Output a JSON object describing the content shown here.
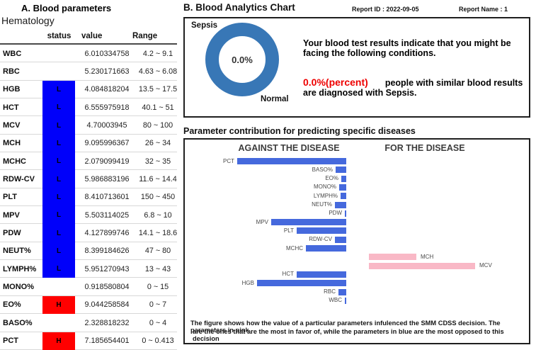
{
  "colors": {
    "status_low": "#0000fa",
    "status_high": "#ff0000",
    "donut_blue": "#3877b6",
    "bar_against": "#4569dd",
    "bar_for": "#f9b8c6",
    "highlight_red": "#ee0000"
  },
  "left_panel": {
    "title": "A. Blood parameters",
    "subtitle": "Hematology",
    "columns": {
      "status": "status",
      "value": "value",
      "range": "Range"
    },
    "rows": [
      {
        "name": "WBC",
        "status": "",
        "value": "6.010334758",
        "range": "4.2 ~ 9.1"
      },
      {
        "name": "RBC",
        "status": "",
        "value": "5.230171663",
        "range": "4.63 ~ 6.08"
      },
      {
        "name": "HGB",
        "status": "L",
        "value": "4.084818204",
        "range": "13.5 ~ 17.5"
      },
      {
        "name": "HCT",
        "status": "L",
        "value": "6.555975918",
        "range": "40.1 ~ 51"
      },
      {
        "name": "MCV",
        "status": "L",
        "value": "4.70003945",
        "range": "80 ~ 100"
      },
      {
        "name": "MCH",
        "status": "L",
        "value": "9.095996367",
        "range": "26 ~ 34"
      },
      {
        "name": "MCHC",
        "status": "L",
        "value": "2.079099419",
        "range": "32 ~ 35"
      },
      {
        "name": "RDW-CV",
        "status": "L",
        "value": "5.986883196",
        "range": "11.6 ~ 14.4"
      },
      {
        "name": "PLT",
        "status": "L",
        "value": "8.410713601",
        "range": "150 ~ 450"
      },
      {
        "name": "MPV",
        "status": "L",
        "value": "5.503114025",
        "range": "6.8 ~ 10"
      },
      {
        "name": "PDW",
        "status": "L",
        "value": "4.127899746",
        "range": "14.1 ~ 18.6"
      },
      {
        "name": "NEUT%",
        "status": "L",
        "value": "8.399184626",
        "range": "47 ~ 80"
      },
      {
        "name": "LYMPH%",
        "status": "L",
        "value": "5.951270943",
        "range": "13 ~ 43"
      },
      {
        "name": "MONO%",
        "status": "",
        "value": "0.918580804",
        "range": "0 ~ 15"
      },
      {
        "name": "EO%",
        "status": "H",
        "value": "9.044258584",
        "range": "0 ~ 7"
      },
      {
        "name": "BASO%",
        "status": "",
        "value": "2.328818232",
        "range": "0 ~ 4"
      },
      {
        "name": "PCT",
        "status": "H",
        "value": "7.185654401",
        "range": "0 ~ 0.413"
      }
    ]
  },
  "right_panel": {
    "title": "B. Blood Analytics Chart",
    "report_id_label": "Report ID :",
    "report_id_value": "2022-09-05",
    "report_name_label": "Report Name :",
    "report_name_value": "1",
    "message_intro": "Your blood test results indicate that you might be facing the following conditions.",
    "highlight": "0.0%(percent)",
    "message_rest": "people with similar blood results are diagnosed with Sepsis."
  },
  "contribution": {
    "title": "Parameter contribution for predicting specific diseases",
    "footnote_line1": "The figure shows how the value of a particular parameters infulenced the SMM CDSS decision. The parameters in pink",
    "footnote_line2": "are the ones that are the most in favor of, while the parameters in blue are the most opposed to this decision"
  },
  "chart_data": [
    {
      "type": "pie",
      "variant": "donut",
      "title": "B. Blood Analytics Chart",
      "labels": [
        "Sepsis",
        "Normal"
      ],
      "values": [
        0.0,
        100.0
      ],
      "unit": "percent",
      "center_label": "0.0%",
      "label_sepsis": "Sepsis",
      "label_normal": "Normal",
      "colors": [
        "#3877b6",
        "#3877b6"
      ],
      "legend_position": "labels-on-chart"
    },
    {
      "type": "bar",
      "orientation": "horizontal",
      "title": "Parameter contribution for predicting specific diseases",
      "groups": [
        "AGAINST THE DISEASE",
        "FOR THE DISEASE"
      ],
      "axis_note": "no numeric axis shown; values are relative magnitudes normalized to longest bar = 1.0",
      "against_color": "#4569dd",
      "for_color": "#f9b8c6",
      "bars": [
        {
          "name": "PCT",
          "direction": "against",
          "value": 1.0
        },
        {
          "name": "BASO%",
          "direction": "against",
          "value": 0.1
        },
        {
          "name": "EO%",
          "direction": "against",
          "value": 0.045
        },
        {
          "name": "MONO%",
          "direction": "against",
          "value": 0.065
        },
        {
          "name": "LYMPH%",
          "direction": "against",
          "value": 0.052
        },
        {
          "name": "NEUT%",
          "direction": "against",
          "value": 0.104
        },
        {
          "name": "PDW",
          "direction": "against",
          "value": 0.016
        },
        {
          "name": "MPV",
          "direction": "against",
          "value": 0.688
        },
        {
          "name": "PLT",
          "direction": "against",
          "value": 0.455
        },
        {
          "name": "RDW-CV",
          "direction": "against",
          "value": 0.104
        },
        {
          "name": "MCHC",
          "direction": "against",
          "value": 0.37
        },
        {
          "name": "MCH",
          "direction": "for",
          "value": 0.435
        },
        {
          "name": "MCV",
          "direction": "for",
          "value": 0.974
        },
        {
          "name": "HCT",
          "direction": "against",
          "value": 0.455
        },
        {
          "name": "HGB",
          "direction": "against",
          "value": 0.818
        },
        {
          "name": "RBC",
          "direction": "against",
          "value": 0.071
        },
        {
          "name": "WBC",
          "direction": "against",
          "value": 0.013
        }
      ]
    }
  ]
}
